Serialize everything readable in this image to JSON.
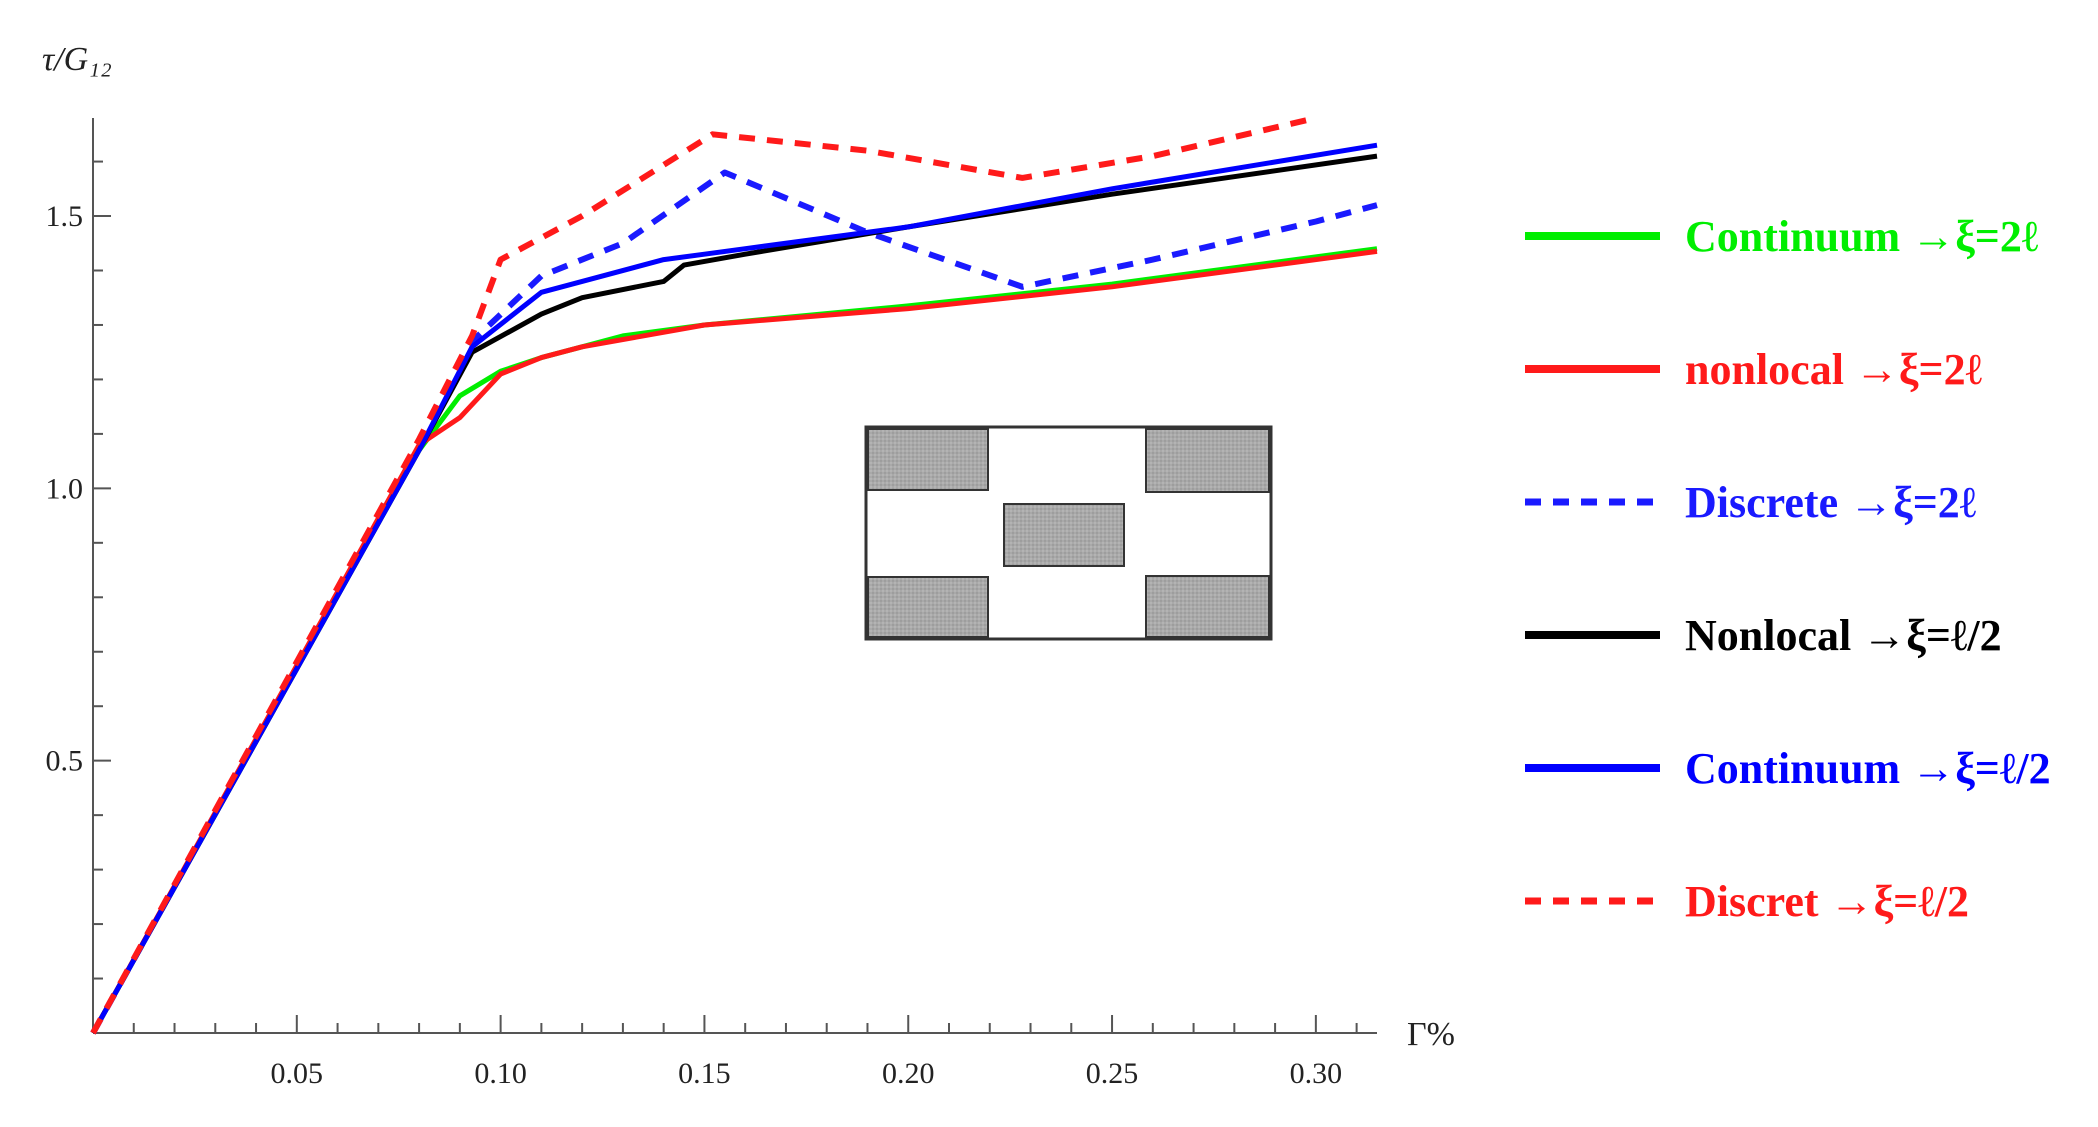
{
  "chart_data": {
    "type": "line",
    "xlabel": "Γ%",
    "ylabel": "τ/G₁₂",
    "xlim": [
      0,
      0.315
    ],
    "ylim": [
      0,
      1.68
    ],
    "xticks": [
      0.05,
      0.1,
      0.15,
      0.2,
      0.25,
      0.3
    ],
    "xtick_labels": [
      "0.05",
      "0.10",
      "0.15",
      "0.20",
      "0.25",
      "0.30"
    ],
    "yticks": [
      0.5,
      1.0,
      1.5
    ],
    "ytick_labels": [
      "0.5",
      "1.0",
      "1.5"
    ],
    "legend_position": "right",
    "inset": "cell-schematic",
    "series": [
      {
        "name": "Continuum →ξ=2ℓ",
        "color": "#00ee00",
        "dash": false,
        "x": [
          0,
          0.08,
          0.09,
          0.1,
          0.11,
          0.12,
          0.13,
          0.15,
          0.2,
          0.25,
          0.315
        ],
        "y": [
          0,
          1.07,
          1.17,
          1.215,
          1.24,
          1.26,
          1.28,
          1.3,
          1.335,
          1.375,
          1.44
        ]
      },
      {
        "name": "nonlocal →ξ=2ℓ",
        "color": "#ff1a1a",
        "dash": false,
        "x": [
          0,
          0.08,
          0.09,
          0.1,
          0.11,
          0.12,
          0.15,
          0.2,
          0.25,
          0.315
        ],
        "y": [
          0,
          1.08,
          1.13,
          1.21,
          1.24,
          1.26,
          1.3,
          1.33,
          1.37,
          1.435
        ]
      },
      {
        "name": "Discrete →ξ=2ℓ",
        "color": "#1a1aff",
        "dash": true,
        "x": [
          0,
          0.08,
          0.093,
          0.11,
          0.13,
          0.155,
          0.19,
          0.228,
          0.26,
          0.3,
          0.315
        ],
        "y": [
          0,
          1.08,
          1.27,
          1.39,
          1.45,
          1.58,
          1.47,
          1.37,
          1.42,
          1.49,
          1.52
        ]
      },
      {
        "name": "Nonlocal →ξ=ℓ/2",
        "color": "#000000",
        "dash": false,
        "x": [
          0,
          0.08,
          0.093,
          0.11,
          0.12,
          0.14,
          0.145,
          0.16,
          0.2,
          0.25,
          0.315
        ],
        "y": [
          0,
          1.07,
          1.25,
          1.32,
          1.35,
          1.38,
          1.41,
          1.43,
          1.48,
          1.54,
          1.61
        ]
      },
      {
        "name": "Continuum →ξ=ℓ/2",
        "color": "#0000ff",
        "dash": false,
        "x": [
          0,
          0.08,
          0.093,
          0.11,
          0.12,
          0.14,
          0.15,
          0.16,
          0.2,
          0.25,
          0.315
        ],
        "y": [
          0,
          1.07,
          1.26,
          1.36,
          1.38,
          1.42,
          1.43,
          1.44,
          1.48,
          1.55,
          1.63
        ]
      },
      {
        "name": "Discret →ξ=ℓ/2",
        "color": "#ff1a1a",
        "dash": true,
        "x": [
          0,
          0.08,
          0.093,
          0.1,
          0.12,
          0.152,
          0.19,
          0.228,
          0.26,
          0.3
        ],
        "y": [
          0,
          1.09,
          1.28,
          1.42,
          1.5,
          1.65,
          1.62,
          1.57,
          1.61,
          1.68
        ]
      }
    ]
  }
}
